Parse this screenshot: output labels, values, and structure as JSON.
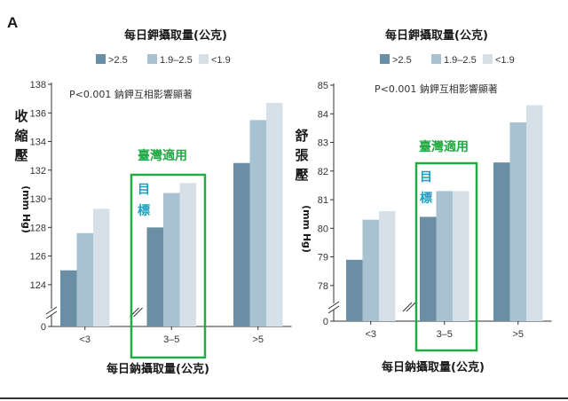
{
  "panel_label": "A",
  "colors": {
    "series": [
      "#6a8ea3",
      "#a9c2d1",
      "#d5e0e8"
    ],
    "highlight": "#22aa44",
    "target_text": "#1aa0c0",
    "axis": "#333333"
  },
  "chart_data": [
    {
      "type": "bar",
      "title": "每日鉀攝取量(公克)",
      "legend_placement": "top",
      "series_legend": [
        ">2.5",
        "1.9–2.5",
        "<1.9"
      ],
      "annotation": "P<0.001  鈉鉀互相影響顯著",
      "ylabel": "收縮壓",
      "ylabel_unit": "(mm Hg)",
      "xlabel": "每日鈉攝取量(公克)",
      "categories": [
        "<3",
        "3–5",
        ">5"
      ],
      "y_ticks": [
        "138",
        "136",
        "134",
        "132",
        "130",
        "128",
        "126",
        "124",
        "0"
      ],
      "ylim": [
        123,
        138
      ],
      "axis_break": true,
      "grid": false,
      "series": [
        {
          "name": ">2.5",
          "values": [
            125.0,
            128.0,
            132.5
          ]
        },
        {
          "name": "1.9–2.5",
          "values": [
            127.6,
            130.4,
            135.5
          ]
        },
        {
          "name": "<1.9",
          "values": [
            129.3,
            131.1,
            136.7
          ]
        }
      ],
      "highlight": {
        "label": "臺灣適用",
        "target": "目標",
        "category_index": 1
      }
    },
    {
      "type": "bar",
      "title": "每日鉀攝取量(公克)",
      "legend_placement": "top",
      "series_legend": [
        ">2.5",
        "1.9–2.5",
        "<1.9"
      ],
      "annotation": "P<0.001  鈉鉀互相影響顯著",
      "ylabel": "舒張壓",
      "ylabel_unit": "(mm Hg)",
      "xlabel": "每日鈉攝取量(公克)",
      "categories": [
        "<3",
        "3–5",
        ">5"
      ],
      "y_ticks": [
        "85",
        "84",
        "83",
        "82",
        "81",
        "80",
        "79",
        "78",
        "0"
      ],
      "ylim": [
        77.5,
        85
      ],
      "axis_break": true,
      "grid": false,
      "series": [
        {
          "name": ">2.5",
          "values": [
            78.9,
            80.4,
            82.3
          ]
        },
        {
          "name": "1.9–2.5",
          "values": [
            80.3,
            81.3,
            83.7
          ]
        },
        {
          "name": "<1.9",
          "values": [
            80.6,
            81.3,
            84.3
          ]
        }
      ],
      "highlight": {
        "label": "臺灣適用",
        "target": "目標",
        "category_index": 1
      }
    }
  ]
}
